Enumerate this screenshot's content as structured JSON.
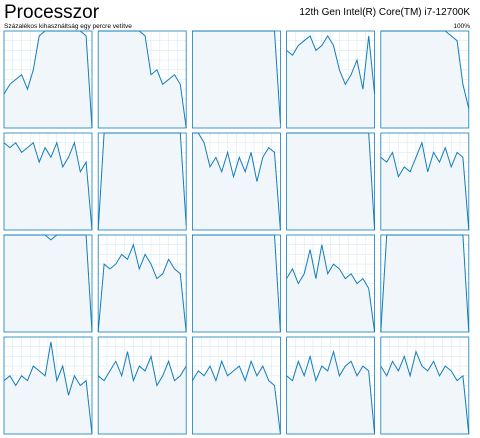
{
  "header": {
    "title": "Processzor",
    "cpu_name": "12th Gen Intel(R) Core(TM) i7-12700K",
    "subtitle": "Százalékos kihasználtság egy percre vetítve",
    "max_label": "100%"
  },
  "graphs": [
    {
      "values": [
        35,
        45,
        50,
        55,
        40,
        60,
        95,
        100,
        100,
        100,
        100,
        100,
        100,
        100,
        95,
        0
      ]
    },
    {
      "values": [
        100,
        100,
        100,
        100,
        100,
        100,
        100,
        100,
        95,
        55,
        60,
        45,
        50,
        55,
        45,
        0
      ]
    },
    {
      "values": [
        100,
        100,
        100,
        100,
        100,
        100,
        100,
        100,
        100,
        100,
        100,
        100,
        100,
        100,
        100,
        5
      ]
    },
    {
      "values": [
        80,
        75,
        85,
        90,
        95,
        80,
        85,
        95,
        85,
        60,
        45,
        55,
        70,
        40,
        95,
        35
      ]
    },
    {
      "values": [
        100,
        100,
        100,
        100,
        100,
        100,
        100,
        100,
        100,
        100,
        100,
        100,
        95,
        90,
        45,
        20
      ]
    },
    {
      "values": [
        90,
        85,
        90,
        80,
        85,
        90,
        70,
        85,
        75,
        90,
        65,
        75,
        90,
        60,
        70,
        0
      ]
    },
    {
      "values": [
        0,
        100,
        100,
        100,
        100,
        100,
        100,
        100,
        100,
        100,
        100,
        100,
        100,
        100,
        100,
        5
      ]
    },
    {
      "values": [
        100,
        100,
        90,
        65,
        75,
        60,
        80,
        55,
        75,
        60,
        80,
        50,
        75,
        85,
        80,
        0
      ]
    },
    {
      "values": [
        100,
        100,
        100,
        100,
        100,
        100,
        100,
        100,
        100,
        100,
        100,
        100,
        100,
        100,
        100,
        0
      ]
    },
    {
      "values": [
        75,
        70,
        80,
        55,
        65,
        60,
        75,
        90,
        60,
        80,
        70,
        85,
        65,
        80,
        75,
        0
      ]
    },
    {
      "values": [
        100,
        100,
        100,
        100,
        100,
        100,
        100,
        100,
        95,
        100,
        100,
        100,
        100,
        100,
        100,
        0
      ]
    },
    {
      "values": [
        0,
        70,
        65,
        70,
        80,
        75,
        90,
        65,
        80,
        70,
        55,
        60,
        75,
        65,
        60,
        0
      ]
    },
    {
      "values": [
        100,
        100,
        100,
        100,
        100,
        100,
        100,
        100,
        100,
        100,
        100,
        100,
        100,
        100,
        100,
        0
      ]
    },
    {
      "values": [
        55,
        65,
        50,
        60,
        85,
        55,
        90,
        60,
        70,
        65,
        55,
        60,
        50,
        55,
        45,
        0
      ]
    },
    {
      "values": [
        0,
        100,
        100,
        100,
        100,
        100,
        100,
        100,
        100,
        100,
        100,
        100,
        100,
        100,
        100,
        0
      ]
    },
    {
      "values": [
        55,
        60,
        50,
        60,
        55,
        70,
        65,
        60,
        95,
        55,
        70,
        40,
        60,
        50,
        55,
        0
      ]
    },
    {
      "values": [
        60,
        55,
        65,
        75,
        60,
        85,
        55,
        70,
        65,
        80,
        50,
        60,
        75,
        55,
        60,
        70
      ]
    },
    {
      "values": [
        55,
        65,
        60,
        70,
        55,
        75,
        60,
        65,
        70,
        55,
        75,
        60,
        70,
        55,
        50,
        0
      ]
    },
    {
      "values": [
        60,
        55,
        75,
        60,
        80,
        55,
        70,
        65,
        85,
        60,
        70,
        75,
        60,
        70,
        65,
        0
      ]
    },
    {
      "values": [
        70,
        60,
        75,
        65,
        80,
        60,
        85,
        70,
        65,
        75,
        60,
        70,
        65,
        55,
        60,
        0
      ]
    }
  ]
}
